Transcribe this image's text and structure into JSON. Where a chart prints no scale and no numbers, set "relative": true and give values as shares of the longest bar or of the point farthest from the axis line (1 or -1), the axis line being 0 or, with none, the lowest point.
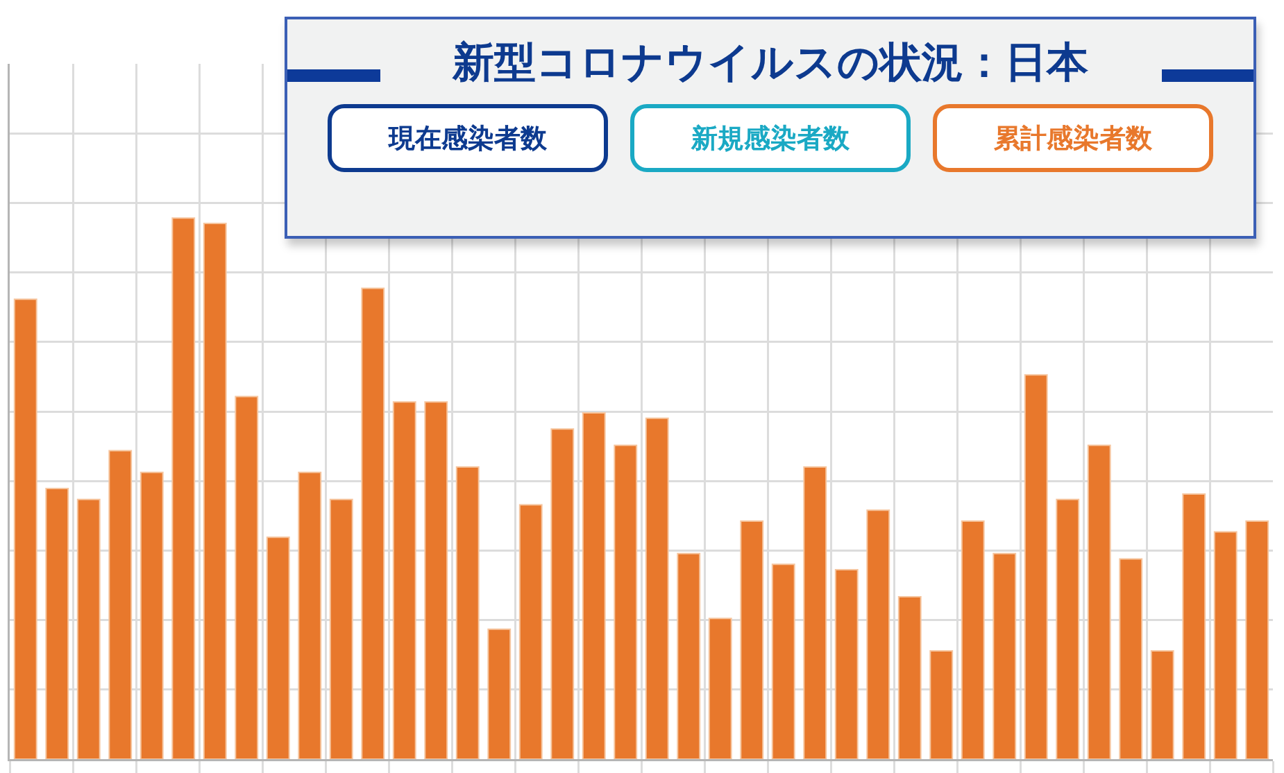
{
  "chart_data": {
    "type": "bar",
    "title": "新型コロナウイルスの状況：日本",
    "annotations": [
      "現在感染者数",
      "新規感染者数",
      "累計感染者数"
    ],
    "categories": [
      null,
      null,
      null,
      null,
      null,
      null,
      null,
      null,
      null,
      null,
      null,
      null,
      null,
      null,
      null,
      null,
      null,
      null,
      null,
      null,
      null,
      null,
      null,
      null,
      null,
      null,
      null,
      null,
      null,
      null,
      null,
      null,
      null,
      null,
      null,
      null,
      null,
      null,
      null,
      null
    ],
    "values": [
      0.85,
      0.5,
      0.48,
      0.57,
      0.53,
      1,
      0.99,
      0.67,
      0.41,
      0.53,
      0.48,
      0.87,
      0.66,
      0.66,
      0.54,
      0.24,
      0.47,
      0.61,
      0.64,
      0.58,
      0.63,
      0.38,
      0.26,
      0.44,
      0.36,
      0.54,
      0.35,
      0.46,
      0.3,
      0.2,
      0.44,
      0.38,
      0.71,
      0.48,
      0.58,
      0.37,
      0.2,
      0.49,
      0.42,
      0.44
    ],
    "color": "#e8782c",
    "relative": true,
    "grid": true
  }
}
